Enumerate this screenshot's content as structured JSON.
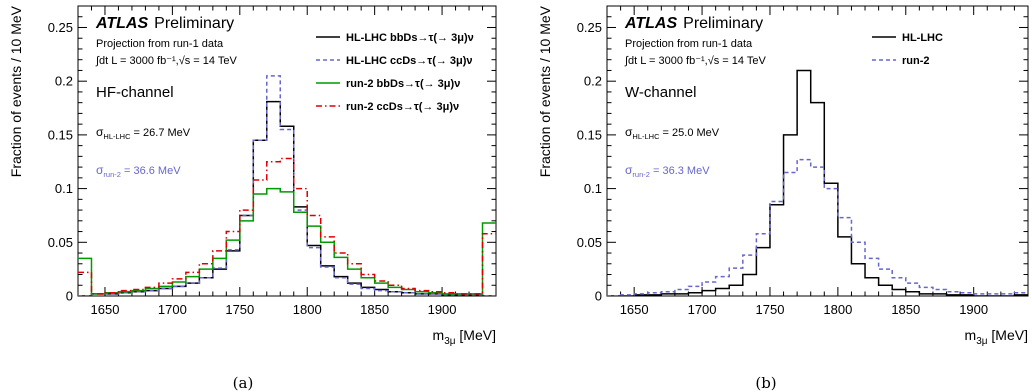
{
  "chart_data": [
    {
      "type": "histogram-step",
      "panel_label": "(a)",
      "experiment": "ATLAS",
      "status": "Preliminary",
      "subtitle": "Projection from run-1 data",
      "lumi_text": "∫dt L = 3000 fb⁻¹,√s = 14 TeV",
      "channel": "HF-channel",
      "annotations": [
        {
          "label": "σ_HL-LHC = 26.7 MeV",
          "sym": "σ",
          "sub": "HL-LHC",
          "rest": " = 26.7 MeV",
          "color": "#000000"
        },
        {
          "label": "σ_run-2 = 36.6 MeV",
          "sym": "σ",
          "sub": "run-2",
          "rest": " = 36.6 MeV",
          "color": "#6666cc"
        }
      ],
      "xlabel": "m3μ [MeV]",
      "xlabel_main": "m",
      "xlabel_sub": "3μ",
      "xlabel_unit": " [MeV]",
      "ylabel": "Fraction of events / 10 MeV",
      "xlim": [
        1630,
        1940
      ],
      "ylim": [
        0,
        0.27
      ],
      "xticks": [
        1650,
        1700,
        1750,
        1800,
        1850,
        1900
      ],
      "yticks": [
        0,
        0.05,
        0.1,
        0.15,
        0.2,
        0.25
      ],
      "ytick_labels": [
        "0",
        "0.05",
        "0.1",
        "0.15",
        "0.2",
        "0.25"
      ],
      "bin_edges": [
        1630,
        1640,
        1650,
        1660,
        1670,
        1680,
        1690,
        1700,
        1710,
        1720,
        1730,
        1740,
        1750,
        1760,
        1770,
        1780,
        1790,
        1800,
        1810,
        1820,
        1830,
        1840,
        1850,
        1860,
        1870,
        1880,
        1890,
        1900,
        1910,
        1920,
        1930,
        1940
      ],
      "legend_position": "top-right",
      "series": [
        {
          "name": "HL-LHC bbDs→τ(→ 3μ)ν",
          "color": "#000000",
          "dash": "",
          "values": [
            0.0,
            0.002,
            0.002,
            0.003,
            0.004,
            0.005,
            0.007,
            0.009,
            0.012,
            0.017,
            0.025,
            0.042,
            0.075,
            0.145,
            0.181,
            0.158,
            0.083,
            0.047,
            0.028,
            0.018,
            0.012,
            0.008,
            0.006,
            0.004,
            0.003,
            0.002,
            0.002,
            0.001,
            0.001,
            0.001,
            0.0
          ]
        },
        {
          "name": "HL-LHC ccDs→τ(→ 3μ)ν",
          "color": "#6666cc",
          "dash": "4,3",
          "values": [
            0.0,
            0.002,
            0.002,
            0.003,
            0.004,
            0.005,
            0.007,
            0.009,
            0.012,
            0.017,
            0.026,
            0.043,
            0.075,
            0.145,
            0.205,
            0.155,
            0.08,
            0.045,
            0.027,
            0.017,
            0.011,
            0.007,
            0.005,
            0.004,
            0.003,
            0.002,
            0.002,
            0.001,
            0.001,
            0.001,
            0.0
          ]
        },
        {
          "name": "run-2 bbDs→τ(→ 3μ)ν",
          "color": "#009900",
          "dash": "",
          "values": [
            0.035,
            0.002,
            0.003,
            0.004,
            0.005,
            0.007,
            0.009,
            0.013,
            0.018,
            0.025,
            0.035,
            0.052,
            0.07,
            0.095,
            0.1,
            0.097,
            0.078,
            0.065,
            0.05,
            0.036,
            0.025,
            0.017,
            0.012,
            0.008,
            0.006,
            0.004,
            0.003,
            0.002,
            0.002,
            0.002,
            0.068
          ]
        },
        {
          "name": "run-2 ccDs→τ(→ 3μ)ν",
          "color": "#dd0000",
          "dash": "6,3,1.5,3",
          "values": [
            0.022,
            0.002,
            0.003,
            0.005,
            0.006,
            0.008,
            0.012,
            0.016,
            0.022,
            0.03,
            0.042,
            0.06,
            0.08,
            0.108,
            0.125,
            0.128,
            0.1,
            0.075,
            0.055,
            0.04,
            0.03,
            0.02,
            0.014,
            0.01,
            0.007,
            0.005,
            0.004,
            0.003,
            0.002,
            0.002,
            0.058
          ]
        }
      ]
    },
    {
      "type": "histogram-step",
      "panel_label": "(b)",
      "experiment": "ATLAS",
      "status": "Preliminary",
      "subtitle": "Projection from run-1 data",
      "lumi_text": "∫dt L = 3000 fb⁻¹,√s = 14 TeV",
      "channel": "W-channel",
      "annotations": [
        {
          "label": "σ_HL-LHC = 25.0 MeV",
          "sym": "σ",
          "sub": "HL-LHC",
          "rest": " = 25.0 MeV",
          "color": "#000000"
        },
        {
          "label": "σ_run-2 = 36.3 MeV",
          "sym": "σ",
          "sub": "run-2",
          "rest": " = 36.3 MeV",
          "color": "#6666cc"
        }
      ],
      "xlabel": "m3μ [MeV]",
      "xlabel_main": "m",
      "xlabel_sub": "3μ",
      "xlabel_unit": " [MeV]",
      "ylabel": "Fraction of events / 10 MeV",
      "xlim": [
        1630,
        1940
      ],
      "ylim": [
        0,
        0.27
      ],
      "xticks": [
        1650,
        1700,
        1750,
        1800,
        1850,
        1900
      ],
      "yticks": [
        0,
        0.05,
        0.1,
        0.15,
        0.2,
        0.25
      ],
      "ytick_labels": [
        "0",
        "0.05",
        "0.1",
        "0.15",
        "0.2",
        "0.25"
      ],
      "bin_edges": [
        1630,
        1640,
        1650,
        1660,
        1670,
        1680,
        1690,
        1700,
        1710,
        1720,
        1730,
        1740,
        1750,
        1760,
        1770,
        1780,
        1790,
        1800,
        1810,
        1820,
        1830,
        1840,
        1850,
        1860,
        1870,
        1880,
        1890,
        1900,
        1910,
        1920,
        1930,
        1940
      ],
      "legend_position": "top-right",
      "series": [
        {
          "name": "HL-LHC",
          "color": "#000000",
          "dash": "",
          "values": [
            0.0,
            0.0,
            0.001,
            0.001,
            0.002,
            0.002,
            0.003,
            0.005,
            0.007,
            0.01,
            0.02,
            0.045,
            0.085,
            0.15,
            0.21,
            0.18,
            0.105,
            0.055,
            0.03,
            0.017,
            0.01,
            0.006,
            0.004,
            0.002,
            0.002,
            0.001,
            0.001,
            0.0,
            0.0,
            0.0,
            0.001
          ]
        },
        {
          "name": "run-2",
          "color": "#6666cc",
          "dash": "4,3",
          "values": [
            0.0,
            0.001,
            0.002,
            0.003,
            0.004,
            0.006,
            0.009,
            0.013,
            0.018,
            0.026,
            0.038,
            0.058,
            0.088,
            0.115,
            0.127,
            0.12,
            0.1,
            0.073,
            0.05,
            0.035,
            0.025,
            0.017,
            0.012,
            0.008,
            0.006,
            0.004,
            0.003,
            0.002,
            0.002,
            0.002,
            0.003
          ]
        }
      ]
    }
  ]
}
